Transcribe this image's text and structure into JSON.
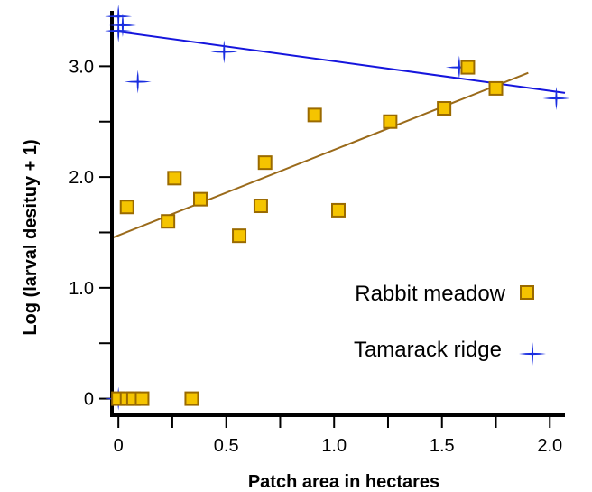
{
  "chart_data": {
    "type": "scatter",
    "xlabel": "Patch area in hectares",
    "ylabel": "Log (larval desituy + 1)",
    "xlim": [
      -0.03,
      2.07
    ],
    "ylim": [
      -0.15,
      3.5
    ],
    "x_ticks": [
      {
        "value": 0,
        "label": "0"
      },
      {
        "value": 0.5,
        "label": "0.5"
      },
      {
        "value": 1.0,
        "label": "1.0"
      },
      {
        "value": 1.5,
        "label": "1.5"
      },
      {
        "value": 2.0,
        "label": "2.0"
      }
    ],
    "x_minor_ticks": [
      0.25,
      0.75,
      1.25,
      1.75
    ],
    "y_ticks": [
      {
        "value": 0,
        "label": "0"
      },
      {
        "value": 1.0,
        "label": "1.0"
      },
      {
        "value": 2.0,
        "label": "2.0"
      },
      {
        "value": 3.0,
        "label": "3.0"
      }
    ],
    "y_minor_ticks": [
      0.5,
      1.5,
      2.5
    ],
    "series": [
      {
        "name": "Rabbit meadow",
        "marker": "square",
        "color": "#f5c400",
        "edge_color": "#9a6a00",
        "line_color": "#9a6a1a",
        "points": [
          [
            0.0,
            0.0
          ],
          [
            0.04,
            0.0
          ],
          [
            0.07,
            0.0
          ],
          [
            0.11,
            0.0
          ],
          [
            0.34,
            0.0
          ],
          [
            0.04,
            1.73
          ],
          [
            0.23,
            1.6
          ],
          [
            0.26,
            1.99
          ],
          [
            0.38,
            1.8
          ],
          [
            0.56,
            1.47
          ],
          [
            0.66,
            1.74
          ],
          [
            0.68,
            2.13
          ],
          [
            0.91,
            2.56
          ],
          [
            1.02,
            1.7
          ],
          [
            1.26,
            2.5
          ],
          [
            1.51,
            2.62
          ],
          [
            1.62,
            2.99
          ],
          [
            1.75,
            2.8
          ]
        ],
        "fit": {
          "x": [
            -0.03,
            1.9
          ],
          "y": [
            1.45,
            2.94
          ]
        }
      },
      {
        "name": "Tamarack ridge",
        "marker": "cross",
        "color": "#1a2ee0",
        "line_color": "#1515dd",
        "points": [
          [
            0.0,
            3.45
          ],
          [
            0.02,
            3.37
          ],
          [
            0.0,
            3.32
          ],
          [
            0.09,
            2.86
          ],
          [
            0.49,
            3.13
          ],
          [
            1.58,
            2.99
          ],
          [
            2.03,
            2.71
          ],
          [
            0.0,
            0.0
          ]
        ],
        "fit": {
          "x": [
            -0.03,
            2.07
          ],
          "y": [
            3.32,
            2.76
          ]
        }
      }
    ],
    "legend": {
      "placement": "center-right",
      "entries": [
        "Rabbit meadow",
        "Tamarack ridge"
      ]
    }
  }
}
